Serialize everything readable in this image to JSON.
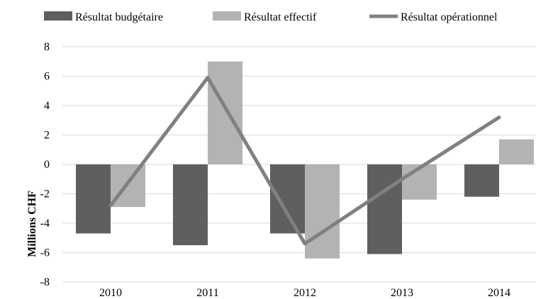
{
  "chart_data": {
    "type": "bar",
    "categories": [
      "2010",
      "2011",
      "2012",
      "2013",
      "2014"
    ],
    "series": [
      {
        "name": "Résultat budgétaire",
        "kind": "bar",
        "color": "#5f5f5f",
        "values": [
          -4.7,
          -5.5,
          -4.7,
          -6.1,
          -2.2
        ]
      },
      {
        "name": "Résultat effectif",
        "kind": "bar",
        "color": "#b3b3b3",
        "values": [
          -2.9,
          7.0,
          -6.4,
          -2.4,
          1.7
        ]
      },
      {
        "name": "Résultat opérationnel",
        "kind": "line",
        "color": "#808080",
        "values": [
          -2.8,
          5.9,
          -5.4,
          -1.0,
          3.2
        ]
      }
    ],
    "title": "",
    "xlabel": "",
    "ylabel": "Millions CHF",
    "yticks": [
      "8",
      "6",
      "4",
      "2",
      "0",
      "-2",
      "-4",
      "-6",
      "-8"
    ],
    "ylim": [
      -8,
      8
    ],
    "ystep": 2,
    "grid": true,
    "legend": "top"
  }
}
